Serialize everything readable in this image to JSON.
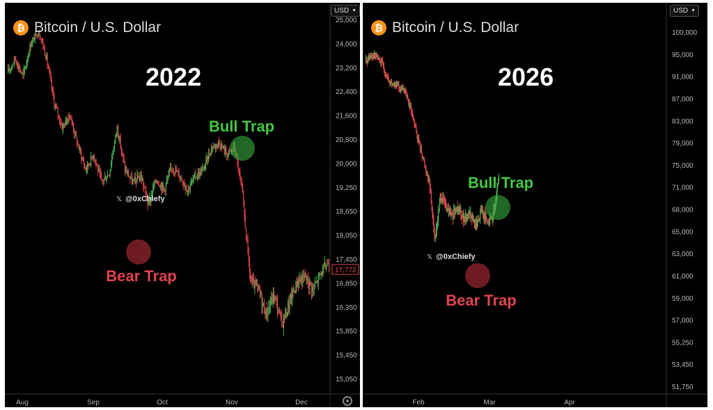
{
  "chart_data": [
    {
      "type": "candlestick",
      "title": "Bitcoin / U.S. Dollar",
      "year_label": "2022",
      "currency": "USD",
      "y_ticks": [
        25000,
        24000,
        23200,
        22400,
        21600,
        20800,
        20000,
        19250,
        18650,
        18050,
        17450,
        16850,
        16350,
        15850,
        15450,
        15050
      ],
      "y_tick_labels": [
        "25,000",
        "24,000",
        "23,200",
        "22,400",
        "21,600",
        "20,800",
        "20,000",
        "19,250",
        "18,650",
        "18,050",
        "17,450",
        "16,850",
        "16,350",
        "15,850",
        "15,450",
        "15,050"
      ],
      "last_price": "17,772",
      "x_labels": [
        "Aug",
        "Sep",
        "Oct",
        "Nov",
        "Dec"
      ],
      "watermark": "@0xChiefy",
      "annotations": {
        "bull": {
          "label": "Bull Trap",
          "price": 21400
        },
        "bear": {
          "label": "Bear Trap",
          "price": 18300
        }
      },
      "path": [
        23000,
        23500,
        22900,
        24000,
        24500,
        23500,
        22000,
        21200,
        21600,
        20600,
        19800,
        20300,
        19400,
        19700,
        21200,
        19800,
        19400,
        19600,
        18800,
        19500,
        19200,
        19900,
        19600,
        19200,
        19600,
        19800,
        20500,
        20700,
        20300,
        20500,
        19000,
        16900,
        16700,
        16200,
        16600,
        16000,
        16450,
        16900,
        17000,
        16700,
        17100,
        17400
      ]
    },
    {
      "type": "candlestick",
      "title": "Bitcoin / U.S. Dollar",
      "year_label": "2026",
      "currency": "USD",
      "y_ticks": [
        100000,
        95000,
        91000,
        87000,
        83000,
        79000,
        75000,
        71000,
        68000,
        65000,
        63000,
        61000,
        59000,
        57000,
        55250,
        53450,
        51750
      ],
      "y_tick_labels": [
        "100,000",
        "95,000",
        "91,000",
        "87,000",
        "83,000",
        "79,000",
        "75,000",
        "71,000",
        "68,000",
        "65,000",
        "63,000",
        "61,000",
        "59,000",
        "57,000",
        "55,250",
        "53,450",
        "51,750"
      ],
      "x_labels": [
        "Feb",
        "Mar",
        "Apr"
      ],
      "watermark": "@0xChiefy",
      "annotations": {
        "bull": {
          "label": "Bull Trap",
          "price": 72500
        },
        "bear": {
          "label": "Bear Trap",
          "price": 63500
        }
      },
      "path": [
        93500,
        95000,
        94500,
        93000,
        90000,
        89500,
        89000,
        88000,
        84000,
        80000,
        76000,
        72000,
        64000,
        70000,
        68000,
        67000,
        68500,
        66500,
        67500,
        65500,
        68000,
        66000,
        67000,
        72500
      ]
    }
  ]
}
